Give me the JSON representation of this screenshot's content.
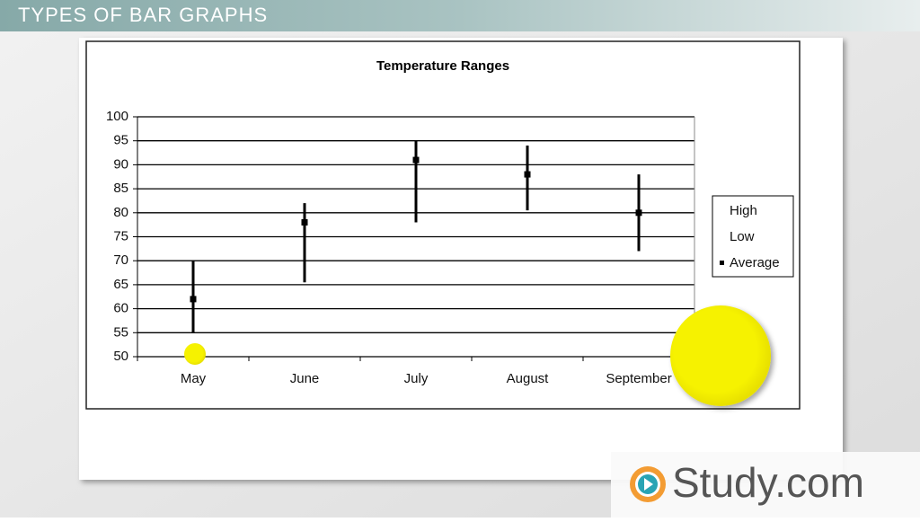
{
  "header": {
    "title": "TYPES OF BAR GRAPHS"
  },
  "chart_data": {
    "type": "hilo",
    "title": "Temperature Ranges",
    "categories": [
      "May",
      "June",
      "July",
      "August",
      "September"
    ],
    "series": [
      {
        "name": "High",
        "color": "#000000",
        "values": [
          70,
          82,
          95,
          94,
          88
        ]
      },
      {
        "name": "Low",
        "color": "#000000",
        "values": [
          55,
          65.5,
          78,
          80.5,
          72
        ]
      },
      {
        "name": "Average",
        "color": "#000000",
        "values": [
          62,
          78,
          91,
          88,
          80
        ]
      }
    ],
    "ylim": [
      50,
      100
    ],
    "yticks": [
      50,
      55,
      60,
      65,
      70,
      75,
      80,
      85,
      90,
      95,
      100
    ],
    "grid": true,
    "legend": "right"
  },
  "logo": {
    "text": "Study.com"
  }
}
